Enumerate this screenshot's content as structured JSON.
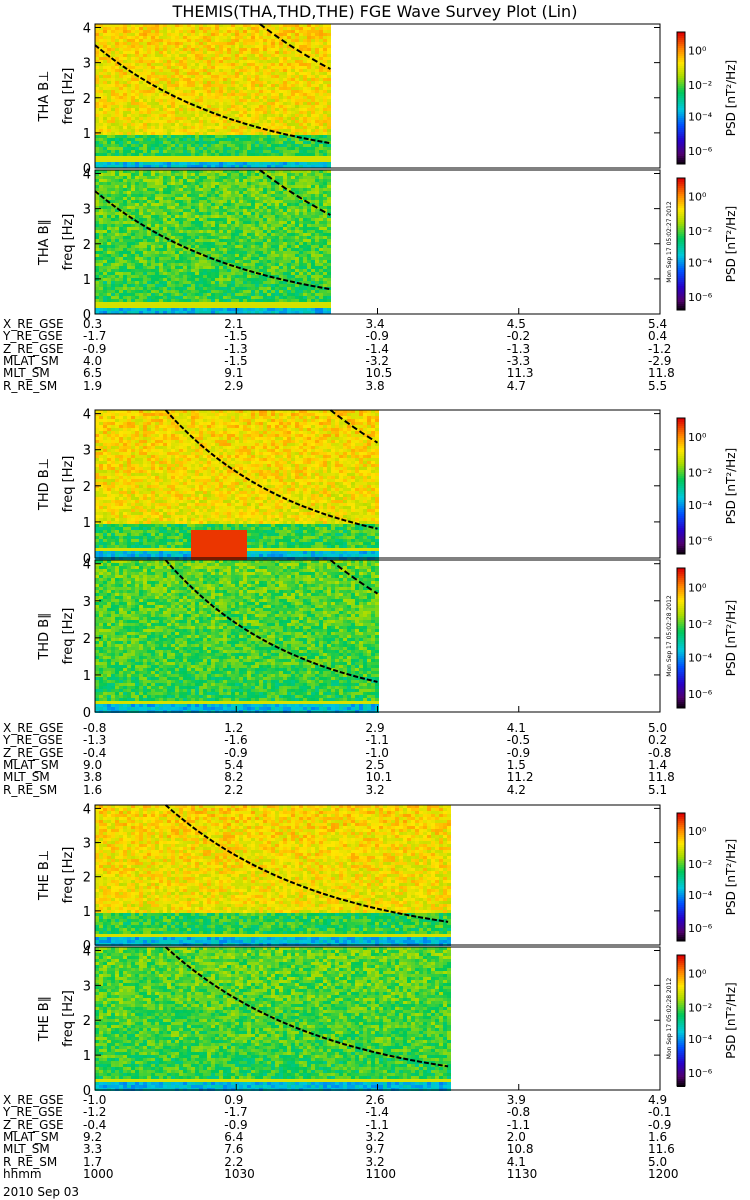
{
  "title": "THEMIS(THA,THD,THE) FGE Wave Survey Plot (Lin)",
  "chart_data": {
    "type": "heatmap",
    "title": "THEMIS(THA,THD,THE) FGE Wave Survey Plot (Lin)",
    "xlabel": "hhmm",
    "x_ticks": [
      "1000",
      "1030",
      "1100",
      "1130",
      "1200"
    ],
    "date": "2010 Sep 03",
    "y_ticks": [
      "0",
      "1",
      "2",
      "3",
      "4"
    ],
    "ylim": [
      0,
      4.1
    ],
    "colorbar": {
      "label": "PSD [nT²/Hz]",
      "ticks": [
        "10⁰",
        "10⁻²",
        "10⁻⁴",
        "10⁻⁶"
      ],
      "scale": "log"
    },
    "panels": [
      {
        "probe": "THA",
        "label": "THA B⊥",
        "ylabel": "freq [Hz]",
        "data_end_hhmm": 1050,
        "stamp": ""
      },
      {
        "probe": "THA",
        "label": "THA B∥",
        "ylabel": "freq [Hz]",
        "data_end_hhmm": 1050,
        "stamp": "Mon Sep 17 05:02:27 2012"
      },
      {
        "probe": "THD",
        "label": "THD B⊥",
        "ylabel": "freq [Hz]",
        "data_end_hhmm": 1100,
        "stamp": ""
      },
      {
        "probe": "THD",
        "label": "THD B∥",
        "ylabel": "freq [Hz]",
        "data_end_hhmm": 1100,
        "stamp": "Mon Sep 17 05:02:28 2012"
      },
      {
        "probe": "THE",
        "label": "THE B⊥",
        "ylabel": "freq [Hz]",
        "data_end_hhmm": 1115,
        "stamp": ""
      },
      {
        "probe": "THE",
        "label": "THE B∥",
        "ylabel": "freq [Hz]",
        "data_end_hhmm": 1115,
        "stamp": "Mon Sep 17 05:02:28 2012"
      }
    ]
  },
  "ephemeris": [
    {
      "rows": [
        {
          "label": "X_RE_GSE",
          "values": [
            "0.3",
            "2.1",
            "3.4",
            "4.5",
            "5.4"
          ]
        },
        {
          "label": "Y_RE_GSE",
          "values": [
            "-1.7",
            "-1.5",
            "-0.9",
            "-0.2",
            "0.4"
          ]
        },
        {
          "label": "Z_RE_GSE",
          "values": [
            "-0.9",
            "-1.3",
            "-1.4",
            "-1.3",
            "-1.2"
          ]
        },
        {
          "label": "MLAT_SM",
          "values": [
            "4.0",
            "-1.5",
            "-3.2",
            "-3.3",
            "-2.9"
          ]
        },
        {
          "label": "MLT_SM",
          "values": [
            "6.5",
            "9.1",
            "10.5",
            "11.3",
            "11.8"
          ]
        },
        {
          "label": "R_RE_SM",
          "values": [
            "1.9",
            "2.9",
            "3.8",
            "4.7",
            "5.5"
          ]
        }
      ]
    },
    {
      "rows": [
        {
          "label": "X_RE_GSE",
          "values": [
            "-0.8",
            "1.2",
            "2.9",
            "4.1",
            "5.0"
          ]
        },
        {
          "label": "Y_RE_GSE",
          "values": [
            "-1.3",
            "-1.6",
            "-1.1",
            "-0.5",
            "0.2"
          ]
        },
        {
          "label": "Z_RE_GSE",
          "values": [
            "-0.4",
            "-0.9",
            "-1.0",
            "-0.9",
            "-0.8"
          ]
        },
        {
          "label": "MLAT_SM",
          "values": [
            "9.0",
            "5.4",
            "2.5",
            "1.5",
            "1.4"
          ]
        },
        {
          "label": "MLT_SM",
          "values": [
            "3.8",
            "8.2",
            "10.1",
            "11.2",
            "11.8"
          ]
        },
        {
          "label": "R_RE_SM",
          "values": [
            "1.6",
            "2.2",
            "3.2",
            "4.2",
            "5.1"
          ]
        }
      ]
    },
    {
      "rows": [
        {
          "label": "X_RE_GSE",
          "values": [
            "-1.0",
            "0.9",
            "2.6",
            "3.9",
            "4.9"
          ]
        },
        {
          "label": "Y_RE_GSE",
          "values": [
            "-1.2",
            "-1.7",
            "-1.4",
            "-0.8",
            "-0.1"
          ]
        },
        {
          "label": "Z_RE_GSE",
          "values": [
            "-0.4",
            "-0.9",
            "-1.1",
            "-1.1",
            "-0.9"
          ]
        },
        {
          "label": "MLAT_SM",
          "values": [
            "9.2",
            "6.4",
            "3.2",
            "2.0",
            "1.6"
          ]
        },
        {
          "label": "MLT_SM",
          "values": [
            "3.3",
            "7.6",
            "9.7",
            "10.8",
            "11.6"
          ]
        },
        {
          "label": "R_RE_SM",
          "values": [
            "1.7",
            "2.2",
            "3.2",
            "4.1",
            "5.0"
          ]
        },
        {
          "label": "hhmm",
          "values": [
            "1000",
            "1030",
            "1100",
            "1130",
            "1200"
          ]
        }
      ]
    }
  ],
  "date_label": "2010 Sep 03"
}
